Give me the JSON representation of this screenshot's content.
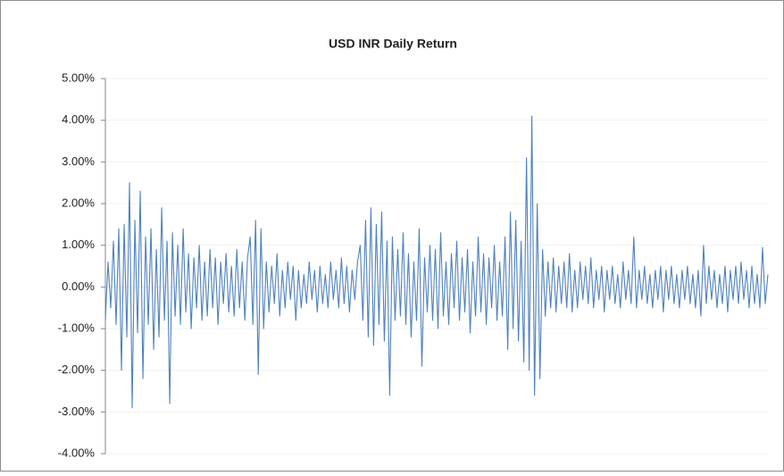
{
  "chart_data": {
    "type": "line",
    "title": "USD INR Daily Return",
    "ylim": [
      -4,
      5
    ],
    "yticks": [
      {
        "value": -4,
        "label": "-4.00%"
      },
      {
        "value": -3,
        "label": "-3.00%"
      },
      {
        "value": -2,
        "label": "-2.00%"
      },
      {
        "value": -1,
        "label": "-1.00%"
      },
      {
        "value": 0,
        "label": "0.00%"
      },
      {
        "value": 1,
        "label": "1.00%"
      },
      {
        "value": 2,
        "label": "2.00%"
      },
      {
        "value": 3,
        "label": "3.00%"
      },
      {
        "value": 4,
        "label": "4.00%"
      },
      {
        "value": 5,
        "label": "5.00%"
      }
    ],
    "grid": true,
    "color": "#4f81bd",
    "values": [
      -0.8,
      0.6,
      -0.5,
      1.1,
      -0.9,
      1.4,
      -2.0,
      1.5,
      -1.2,
      2.5,
      -2.9,
      1.6,
      -1.1,
      2.3,
      -2.2,
      1.2,
      -0.9,
      1.4,
      -1.5,
      0.9,
      -1.2,
      1.9,
      -0.8,
      1.1,
      -2.8,
      1.3,
      -0.7,
      1.0,
      -0.9,
      1.4,
      -0.6,
      0.8,
      -1.0,
      0.7,
      -0.5,
      1.0,
      -0.8,
      0.6,
      -0.7,
      0.9,
      -0.5,
      0.7,
      -0.9,
      0.6,
      -0.4,
      0.8,
      -0.6,
      0.5,
      -0.7,
      0.9,
      -0.5,
      0.6,
      -0.8,
      0.7,
      1.2,
      -0.9,
      1.6,
      -2.1,
      1.4,
      -1.0,
      0.6,
      -0.6,
      0.5,
      -0.4,
      0.8,
      -0.7,
      0.4,
      -0.5,
      0.6,
      -0.3,
      0.5,
      -0.8,
      0.4,
      -0.5,
      0.3,
      -0.4,
      0.6,
      -0.3,
      0.4,
      -0.6,
      0.5,
      -0.4,
      0.3,
      -0.5,
      0.6,
      -0.3,
      0.4,
      -0.5,
      0.7,
      -0.4,
      0.5,
      -0.6,
      0.4,
      -0.3,
      0.6,
      1.0,
      -0.8,
      1.6,
      -1.2,
      1.9,
      -1.4,
      1.5,
      -0.9,
      1.8,
      -1.3,
      1.1,
      -2.6,
      1.2,
      -0.8,
      0.9,
      -0.7,
      1.3,
      -0.9,
      0.8,
      -1.2,
      0.6,
      -0.8,
      1.4,
      -1.9,
      0.7,
      -0.6,
      1.0,
      -0.8,
      0.9,
      -1.0,
      1.3,
      -0.7,
      0.6,
      -0.9,
      0.8,
      -0.5,
      1.1,
      -0.8,
      0.7,
      -0.6,
      0.9,
      -1.1,
      0.6,
      -0.7,
      1.2,
      -0.6,
      0.8,
      -0.9,
      0.7,
      -0.5,
      1.0,
      -0.8,
      0.6,
      -0.7,
      1.2,
      -1.5,
      1.8,
      -1.0,
      1.6,
      -1.3,
      1.1,
      -1.8,
      3.1,
      -2.0,
      4.1,
      -2.6,
      2.0,
      -2.2,
      0.9,
      -0.7,
      0.6,
      -0.5,
      0.7,
      -0.6,
      0.5,
      -0.4,
      0.6,
      -0.5,
      0.8,
      -0.6,
      0.4,
      -0.5,
      0.6,
      -0.3,
      0.5,
      -0.4,
      0.7,
      -0.5,
      0.4,
      -0.3,
      0.5,
      -0.6,
      0.4,
      -0.3,
      0.5,
      -0.4,
      0.3,
      -0.5,
      0.6,
      -0.3,
      0.4,
      -0.4,
      1.2,
      -0.5,
      0.4,
      -0.3,
      0.5,
      -0.4,
      0.3,
      -0.5,
      0.4,
      -0.3,
      0.5,
      -0.6,
      0.4,
      -0.3,
      0.5,
      -0.4,
      0.3,
      -0.5,
      0.4,
      -0.3,
      0.5,
      -0.4,
      0.3,
      -0.5,
      0.4,
      -0.7,
      1.0,
      -0.4,
      0.5,
      -0.3,
      0.4,
      -0.5,
      0.3,
      -0.4,
      0.5,
      -0.6,
      0.4,
      -0.3,
      0.5,
      -0.4,
      0.6,
      -0.3,
      0.4,
      -0.5,
      0.5,
      -0.4,
      0.3,
      -0.5,
      0.95,
      -0.4,
      0.3
    ]
  }
}
